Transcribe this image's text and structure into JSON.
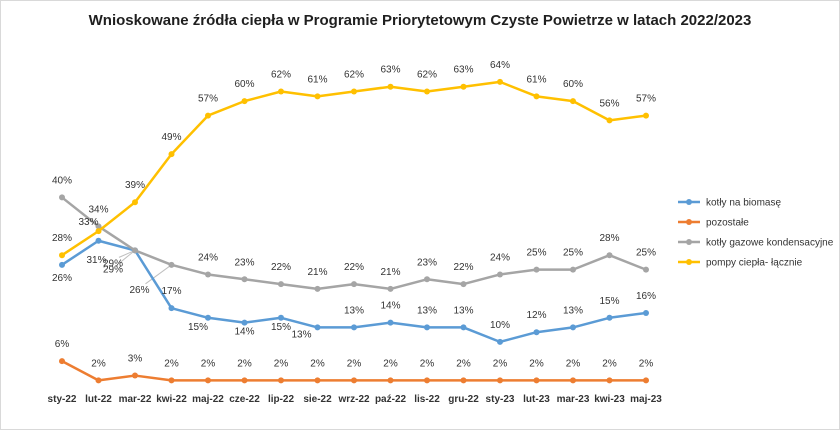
{
  "chart_data": {
    "type": "line",
    "title": "Wnioskowane źródła ciepła w Programie Priorytetowym Czyste Powietrze w latach 2022/2023",
    "categories": [
      "sty-22",
      "lut-22",
      "mar-22",
      "kwi-22",
      "maj-22",
      "cze-22",
      "lip-22",
      "sie-22",
      "wrz-22",
      "paź-22",
      "lis-22",
      "gru-22",
      "sty-23",
      "lut-23",
      "mar-23",
      "kwi-23",
      "maj-23"
    ],
    "ylim": [
      0,
      70
    ],
    "grid": false,
    "legend": "right",
    "series": [
      {
        "name": "kotły na biomasę",
        "color": "#5b9bd5",
        "values": [
          26,
          31,
          29,
          17,
          15,
          14,
          15,
          13,
          13,
          14,
          13,
          13,
          10,
          12,
          13,
          15,
          16
        ],
        "labels": [
          "26%",
          "31%",
          "29%",
          "17%",
          "15%",
          "14%",
          "15%",
          "13%",
          "13%",
          "14%",
          "13%",
          "13%",
          "10%",
          "12%",
          "13%",
          "15%",
          "16%"
        ]
      },
      {
        "name": "pozostałe",
        "color": "#ed7d31",
        "values": [
          6,
          2,
          3,
          2,
          2,
          2,
          2,
          2,
          2,
          2,
          2,
          2,
          2,
          2,
          2,
          2,
          2
        ],
        "labels": [
          "6%",
          "2%",
          "3%",
          "2%",
          "2%",
          "2%",
          "2%",
          "2%",
          "2%",
          "2%",
          "2%",
          "2%",
          "2%",
          "2%",
          "2%",
          "2%",
          "2%"
        ]
      },
      {
        "name": "kotły gazowe kondensacyjne",
        "color": "#a5a5a5",
        "values": [
          40,
          34,
          29,
          26,
          24,
          23,
          22,
          21,
          22,
          21,
          23,
          22,
          24,
          25,
          25,
          28,
          25
        ],
        "labels": [
          "40%",
          "34%",
          "29%",
          "26%",
          "24%",
          "23%",
          "22%",
          "21%",
          "22%",
          "21%",
          "23%",
          "22%",
          "24%",
          "25%",
          "25%",
          "28%",
          "25%"
        ]
      },
      {
        "name": "pompy ciepła- łącznie",
        "color": "#ffc000",
        "values": [
          28,
          33,
          39,
          49,
          57,
          60,
          62,
          61,
          62,
          63,
          62,
          63,
          64,
          61,
          60,
          56,
          57
        ],
        "labels": [
          "28%",
          "33%",
          "39%",
          "49%",
          "57%",
          "60%",
          "62%",
          "61%",
          "62%",
          "63%",
          "62%",
          "63%",
          "64%",
          "61%",
          "60%",
          "56%",
          "57%"
        ]
      }
    ]
  }
}
